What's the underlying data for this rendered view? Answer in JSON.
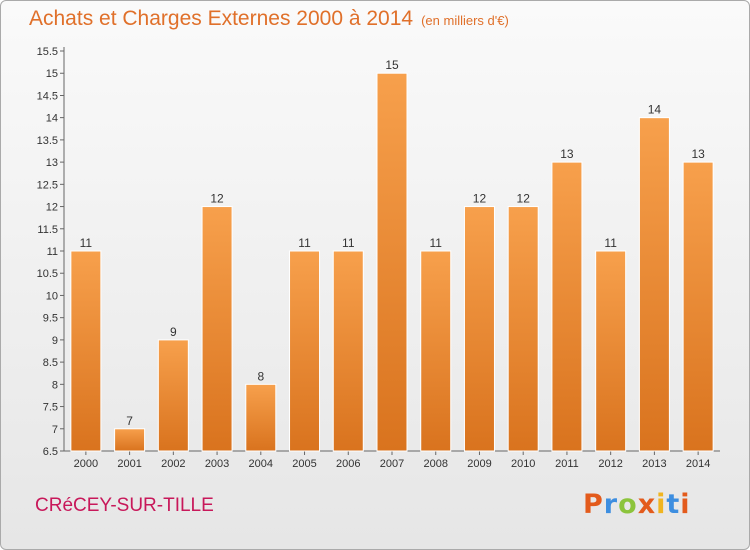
{
  "title": "Achats et Charges Externes 2000 à 2014",
  "unit": "(en milliers d'€)",
  "city": "CRéCEY-SUR-TILLE",
  "brand": "Proxiti",
  "colors": {
    "title": "#e0702a",
    "city": "#c8185a",
    "bar_top": "#f7a04c",
    "bar_bottom": "#d9731e",
    "logo": [
      "#e35b1c",
      "#3d8ee0",
      "#8cc43c",
      "#e35b1c",
      "#f0b520",
      "#3d8ee0",
      "#e35b1c"
    ]
  },
  "chart_data": {
    "type": "bar",
    "title": "Achats et Charges Externes 2000 à 2014",
    "subtitle": "(en milliers d'€)",
    "categories": [
      "2000",
      "2001",
      "2002",
      "2003",
      "2004",
      "2005",
      "2006",
      "2007",
      "2008",
      "2009",
      "2010",
      "2011",
      "2012",
      "2013",
      "2014"
    ],
    "values": [
      11,
      7,
      9,
      12,
      8,
      11,
      11,
      15,
      11,
      12,
      12,
      13,
      11,
      14,
      13
    ],
    "data_labels": [
      "11",
      "7",
      "9",
      "12",
      "8",
      "11",
      "11",
      "15",
      "11",
      "12",
      "12",
      "13",
      "11",
      "14",
      "13"
    ],
    "ylim": [
      6.5,
      15.5
    ],
    "yticks": [
      "6.5",
      "7",
      "7.5",
      "8",
      "8.5",
      "9",
      "9.5",
      "10",
      "10.5",
      "11",
      "11.5",
      "12",
      "12.5",
      "13",
      "13.5",
      "14",
      "14.5",
      "15",
      "15.5"
    ],
    "grid": false,
    "legend": "none"
  }
}
